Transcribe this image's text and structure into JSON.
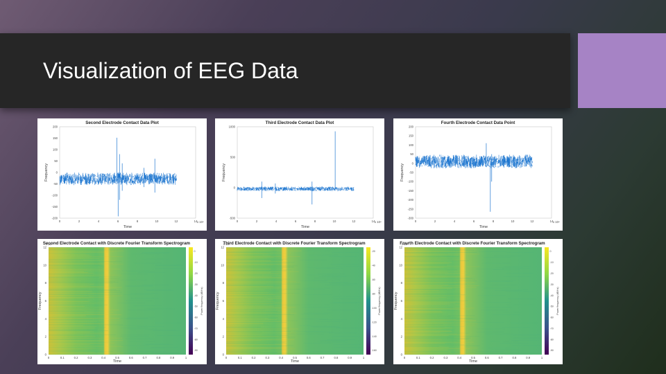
{
  "slide": {
    "title": "Visualization of EEG Data",
    "accent_color": "#a683c5",
    "title_bar_color": "#262626"
  },
  "plots": [
    {
      "title": "Second Electrode Contact Data Plot",
      "type": "timeseries",
      "xlabel": "Time",
      "ylabel": "Frequency",
      "x_exponent": "x 10⁴",
      "x_ticks": [
        "0",
        "2",
        "4",
        "6",
        "8",
        "10",
        "12",
        "14"
      ],
      "y_ticks": [
        "200",
        "150",
        "100",
        "50",
        "0",
        "-50",
        "-100",
        "-150",
        "-200"
      ],
      "color": "#1f77d0"
    },
    {
      "title": "Third Electrode Contact Data Plot",
      "type": "timeseries",
      "xlabel": "Time",
      "ylabel": "Frequency",
      "x_exponent": "x 10⁴",
      "x_ticks": [
        "0",
        "2",
        "4",
        "6",
        "8",
        "10",
        "12",
        "14"
      ],
      "y_ticks": [
        "1000",
        "500",
        "0",
        "-500"
      ],
      "color": "#1f77d0"
    },
    {
      "title": "Fourth Electrode Contact Data Point",
      "type": "timeseries",
      "xlabel": "Time",
      "ylabel": "Frequency",
      "x_exponent": "x 10⁴",
      "x_ticks": [
        "0",
        "2",
        "4",
        "6",
        "8",
        "10",
        "12",
        "14"
      ],
      "y_ticks": [
        "200",
        "150",
        "100",
        "50",
        "0",
        "-50",
        "-100",
        "-150",
        "-200",
        "-250",
        "-300"
      ],
      "color": "#1f77d0"
    },
    {
      "title": "Second Electrode Contact with Discrete Fourier Transform Spectrogram",
      "type": "spectrogram",
      "xlabel": "Time",
      "ylabel": "Frequency",
      "y_exponent": "x 10⁴",
      "x_ticks": [
        "0",
        "0.1",
        "0.2",
        "0.3",
        "0.4",
        "0.5",
        "0.6",
        "0.7",
        "0.8",
        "0.9",
        "1"
      ],
      "y_ticks": [
        "12",
        "10",
        "8",
        "6",
        "4",
        "2",
        "0"
      ],
      "colorbar_label": "Power/frequency (dB/Hz)",
      "colorbar_ticks": [
        "0",
        "-10",
        "-20",
        "-30",
        "-40",
        "-50",
        "-60",
        "-70",
        "-80",
        "-90"
      ]
    },
    {
      "title": "Third Electrode Contact with Discrete Fourier Transform Spectrogram",
      "type": "spectrogram",
      "xlabel": "Time",
      "ylabel": "Frequency",
      "y_exponent": "x 10⁴",
      "x_ticks": [
        "0",
        "0.1",
        "0.2",
        "0.3",
        "0.4",
        "0.5",
        "0.6",
        "0.7",
        "0.8",
        "0.9",
        "1"
      ],
      "y_ticks": [
        "12",
        "10",
        "8",
        "6",
        "4",
        "2",
        "0"
      ],
      "colorbar_label": "Power/frequency (dB/Hz)",
      "colorbar_ticks": [
        "-20",
        "-40",
        "-60",
        "-80",
        "-100",
        "-120",
        "-140",
        "-160"
      ]
    },
    {
      "title": "Fourth Electrode Contact with Discrete Fourier Transform Spectrogram",
      "type": "spectrogram",
      "xlabel": "Time",
      "ylabel": "Frequency",
      "y_exponent": "x 10⁴",
      "x_ticks": [
        "0",
        "0.1",
        "0.2",
        "0.3",
        "0.4",
        "0.5",
        "0.6",
        "0.7",
        "0.8",
        "0.9",
        "1"
      ],
      "y_ticks": [
        "12",
        "10",
        "8",
        "6",
        "4",
        "2",
        "0"
      ],
      "colorbar_label": "Power/frequency (dB/Hz)",
      "colorbar_ticks": [
        "0",
        "-10",
        "-20",
        "-30",
        "-40",
        "-50",
        "-60",
        "-70",
        "-80",
        "-90"
      ]
    }
  ]
}
